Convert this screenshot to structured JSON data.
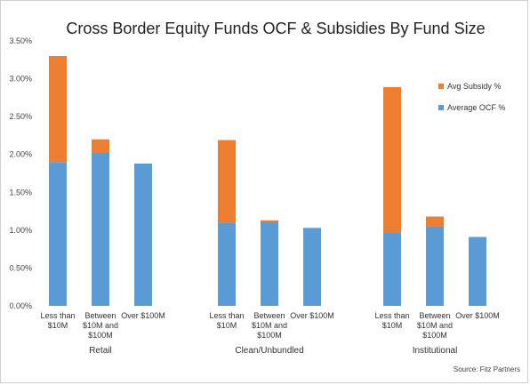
{
  "chart_data": {
    "type": "bar",
    "stacked": true,
    "title": "Cross Border Equity Funds OCF & Subsidies By Fund Size",
    "source": "Source: Fitz Partners",
    "ylim": [
      0,
      0.035
    ],
    "y_ticks": [
      "0.00%",
      "0.50%",
      "1.00%",
      "1.50%",
      "2.00%",
      "2.50%",
      "3.00%",
      "3.50%"
    ],
    "groups": [
      {
        "name": "Retail",
        "categories": [
          [
            "Less than",
            "$10M"
          ],
          [
            "Between",
            "$10M and",
            "$100M"
          ],
          [
            "Over $100M"
          ]
        ],
        "ocf": [
          1.9,
          2.02,
          1.88
        ],
        "subsidy": [
          1.4,
          0.18,
          0.0
        ]
      },
      {
        "name": "Clean/Unbundled",
        "categories": [
          [
            "Less than",
            "$10M"
          ],
          [
            "Between",
            "$10M and",
            "$100M"
          ],
          [
            "Over $100M"
          ]
        ],
        "ocf": [
          1.1,
          1.11,
          1.03
        ],
        "subsidy": [
          1.09,
          0.02,
          0.0
        ]
      },
      {
        "name": "Institutional",
        "categories": [
          [
            "Less than",
            "$10M"
          ],
          [
            "Between",
            "$10M and",
            "$100M"
          ],
          [
            "Over $100M"
          ]
        ],
        "ocf": [
          0.97,
          1.05,
          0.91
        ],
        "subsidy": [
          1.92,
          0.13,
          0.0
        ]
      }
    ],
    "series": [
      {
        "name": "Avg Subsidy %",
        "color": "#ed7d31"
      },
      {
        "name": "Average OCF %",
        "color": "#5b9bd5"
      }
    ],
    "legend_position": "top-right",
    "grid": false
  }
}
